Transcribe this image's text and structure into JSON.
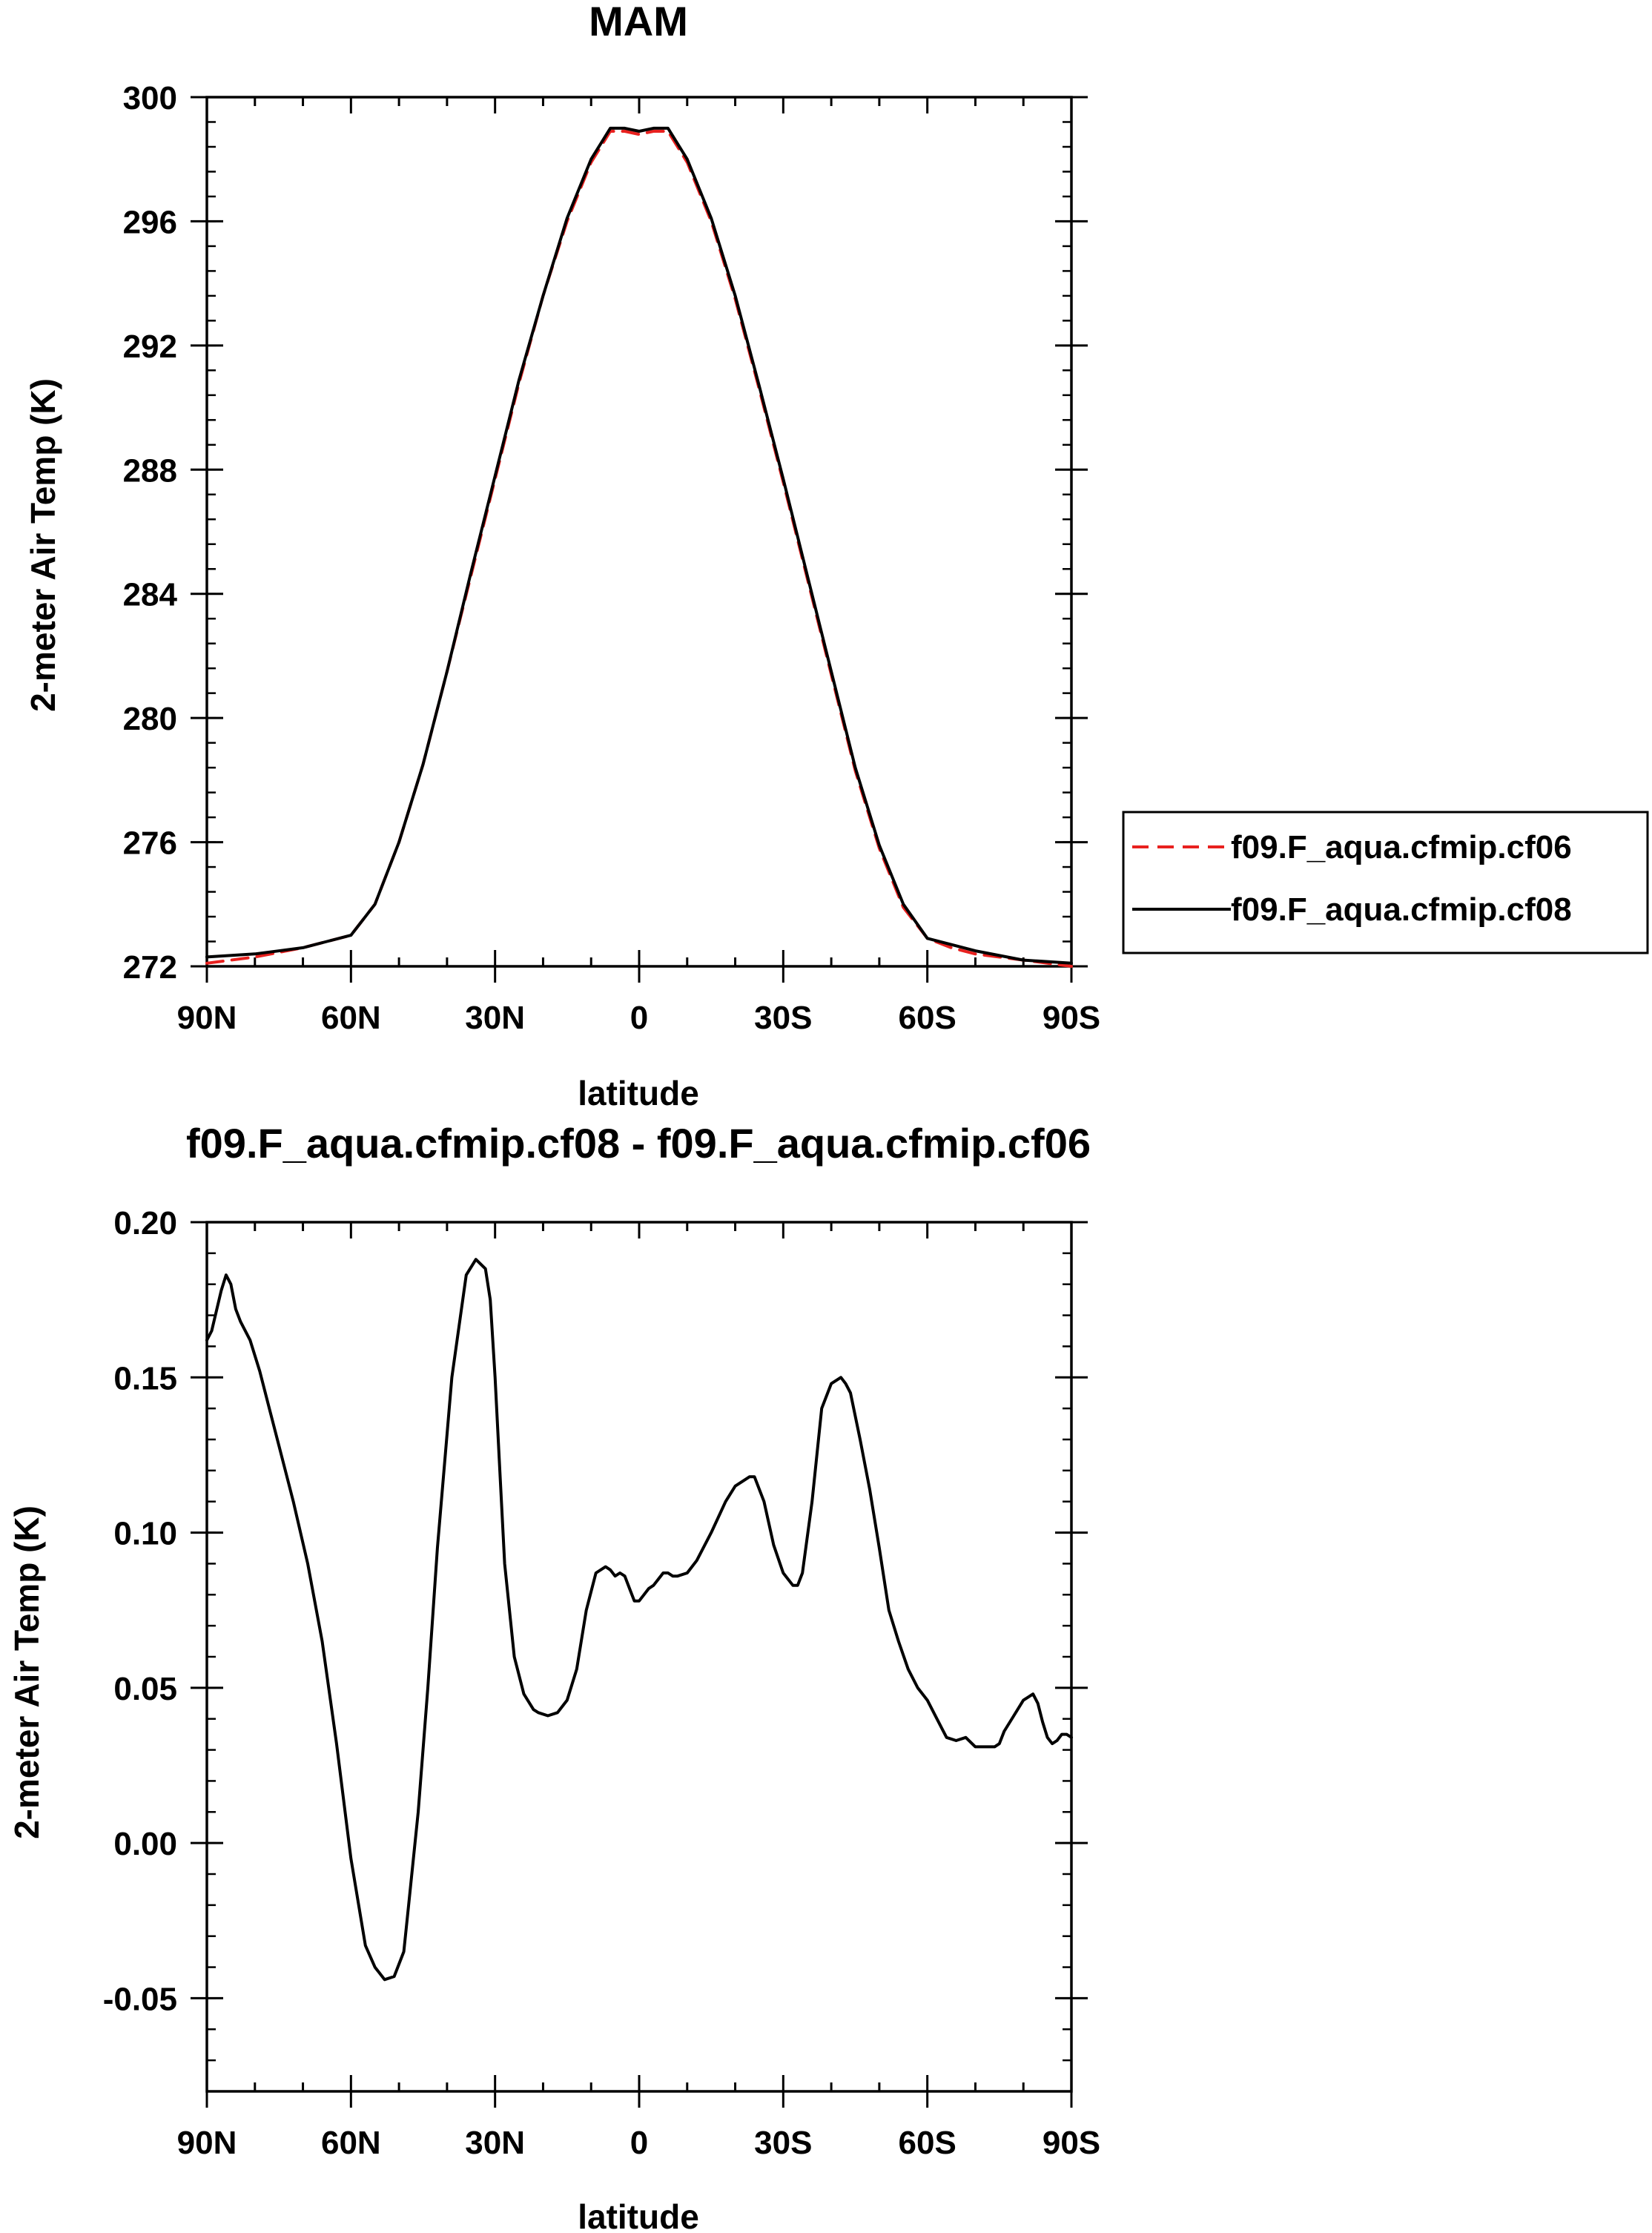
{
  "chart_data": [
    {
      "type": "line",
      "title": "MAM",
      "xlabel": "latitude",
      "ylabel": "2-meter Air Temp (K)",
      "xlim": [
        90,
        -90
      ],
      "ylim": [
        272,
        300
      ],
      "x_ticks": [
        90,
        60,
        30,
        0,
        -30,
        -60,
        -90
      ],
      "x_tick_labels": [
        "90N",
        "60N",
        "30N",
        "0",
        "30S",
        "60S",
        "90S"
      ],
      "y_ticks": [
        272,
        276,
        280,
        284,
        288,
        292,
        296,
        300
      ],
      "y_tick_labels": [
        "272",
        "276",
        "280",
        "284",
        "288",
        "292",
        "296",
        "300"
      ],
      "legend_position": "right",
      "x": [
        90,
        80,
        70,
        65,
        60,
        55,
        50,
        45,
        40,
        35,
        30,
        25,
        20,
        15,
        10,
        6,
        3,
        0,
        -3,
        -6,
        -10,
        -15,
        -20,
        -25,
        -30,
        -35,
        -40,
        -45,
        -50,
        -55,
        -60,
        -65,
        -70,
        -80,
        -90
      ],
      "series": [
        {
          "name": "f09.F_aqua.cfmip.cf06",
          "color": "#e8211f",
          "dash": "dashed",
          "values": [
            272.1,
            272.3,
            272.6,
            272.8,
            273.0,
            274.0,
            276.0,
            278.5,
            281.5,
            284.6,
            287.7,
            290.8,
            293.6,
            296.0,
            297.9,
            298.9,
            298.9,
            298.8,
            298.9,
            298.9,
            297.9,
            296.0,
            293.5,
            290.6,
            287.6,
            284.5,
            281.4,
            278.3,
            275.8,
            273.9,
            272.9,
            272.6,
            272.4,
            272.2,
            272.0
          ]
        },
        {
          "name": "f09.F_aqua.cfmip.cf08",
          "color": "#000000",
          "dash": "solid",
          "values": [
            272.3,
            272.4,
            272.6,
            272.8,
            273.0,
            274.0,
            276.0,
            278.5,
            281.5,
            284.7,
            287.8,
            290.9,
            293.6,
            296.1,
            298.0,
            299.0,
            299.0,
            298.9,
            299.0,
            299.0,
            298.0,
            296.1,
            293.6,
            290.7,
            287.7,
            284.6,
            281.5,
            278.4,
            275.9,
            274.0,
            272.9,
            272.7,
            272.5,
            272.2,
            272.1
          ]
        }
      ]
    },
    {
      "type": "line",
      "title": "f09.F_aqua.cfmip.cf08 - f09.F_aqua.cfmip.cf06",
      "xlabel": "latitude",
      "ylabel": "2-meter Air Temp (K)",
      "xlim": [
        90,
        -90
      ],
      "ylim": [
        -0.08,
        0.2
      ],
      "x_ticks": [
        90,
        60,
        30,
        0,
        -30,
        -60,
        -90
      ],
      "x_tick_labels": [
        "90N",
        "60N",
        "30N",
        "0",
        "30S",
        "60S",
        "90S"
      ],
      "y_ticks": [
        -0.05,
        0,
        0.05,
        0.1,
        0.15,
        0.2
      ],
      "y_tick_labels": [
        "-0.05",
        "0.00",
        "0.05",
        "0.10",
        "0.15",
        "0.20"
      ],
      "x": [
        90,
        89,
        87,
        86,
        85,
        84,
        83,
        81,
        79,
        77,
        75,
        72,
        69,
        66,
        63,
        60,
        57,
        55,
        53,
        51,
        49,
        48,
        46,
        44,
        42,
        39,
        36,
        34,
        32,
        31,
        30,
        29,
        28,
        26,
        24,
        22,
        21,
        19,
        17,
        15,
        13,
        11,
        9,
        7,
        6,
        5,
        4,
        3,
        2,
        1,
        0,
        -1,
        -2,
        -3,
        -4,
        -5,
        -6,
        -7,
        -8,
        -10,
        -12,
        -15,
        -18,
        -20,
        -22,
        -23,
        -24,
        -26,
        -28,
        -30,
        -32,
        -33,
        -34,
        -36,
        -38,
        -40,
        -42,
        -43,
        -44,
        -46,
        -48,
        -50,
        -52,
        -54,
        -56,
        -58,
        -60,
        -62,
        -64,
        -66,
        -68,
        -70,
        -71,
        -72,
        -73,
        -74,
        -75,
        -76,
        -78,
        -80,
        -81,
        -82,
        -83,
        -84,
        -85,
        -86,
        -87,
        -88,
        -89,
        -90
      ],
      "series": [
        {
          "name": "",
          "color": "#000000",
          "dash": "solid",
          "values": [
            0.162,
            0.165,
            0.178,
            0.183,
            0.18,
            0.172,
            0.168,
            0.162,
            0.152,
            0.14,
            0.128,
            0.11,
            0.09,
            0.065,
            0.032,
            -0.005,
            -0.033,
            -0.04,
            -0.044,
            -0.043,
            -0.035,
            -0.02,
            0.01,
            0.05,
            0.095,
            0.15,
            0.183,
            0.188,
            0.185,
            0.175,
            0.15,
            0.12,
            0.09,
            0.06,
            0.048,
            0.043,
            0.042,
            0.041,
            0.042,
            0.046,
            0.056,
            0.075,
            0.087,
            0.089,
            0.088,
            0.086,
            0.087,
            0.086,
            0.082,
            0.078,
            0.078,
            0.08,
            0.082,
            0.083,
            0.085,
            0.087,
            0.087,
            0.086,
            0.086,
            0.087,
            0.091,
            0.1,
            0.11,
            0.115,
            0.117,
            0.118,
            0.118,
            0.11,
            0.096,
            0.087,
            0.083,
            0.083,
            0.087,
            0.11,
            0.14,
            0.148,
            0.15,
            0.148,
            0.145,
            0.13,
            0.114,
            0.095,
            0.075,
            0.065,
            0.056,
            0.05,
            0.046,
            0.04,
            0.034,
            0.033,
            0.034,
            0.031,
            0.031,
            0.031,
            0.031,
            0.031,
            0.032,
            0.036,
            0.041,
            0.046,
            0.047,
            0.048,
            0.045,
            0.039,
            0.034,
            0.032,
            0.033,
            0.035,
            0.035,
            0.034
          ]
        }
      ]
    }
  ]
}
